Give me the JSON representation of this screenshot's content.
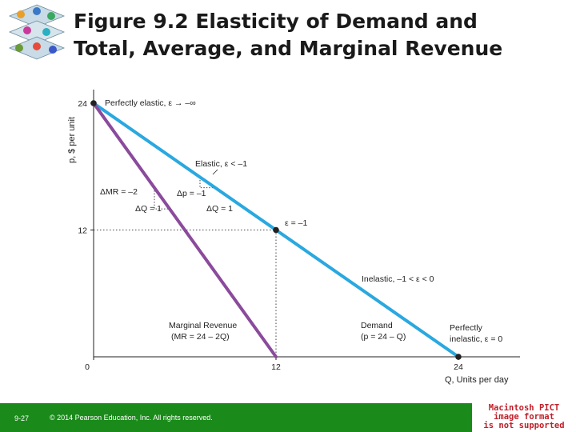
{
  "title_line1": "Figure 9.2 Elasticity of Demand and",
  "title_line2": "Total, Average, and Marginal Revenue",
  "footer": {
    "slide_number": "9-27",
    "copyright": "© 2014 Pearson Education, Inc. All rights reserved."
  },
  "pict_notice": [
    "Macintosh PICT",
    "image format",
    "is not supported"
  ],
  "colors": {
    "demand": "#2aa8e0",
    "marginal_revenue": "#8b4a9c",
    "footer_bg": "#1a8a1a",
    "pict_text": "#c0202a"
  },
  "chart_data": {
    "type": "line",
    "xlabel": "Q, Units per day",
    "ylabel": "p, $ per unit",
    "xlim": [
      0,
      24
    ],
    "ylim": [
      0,
      24
    ],
    "x_ticks": [
      "0",
      "12",
      "24"
    ],
    "y_ticks": [
      "12",
      "24"
    ],
    "series": [
      {
        "name": "Demand",
        "x": [
          0,
          24
        ],
        "y": [
          24,
          0
        ]
      },
      {
        "name": "Marginal Revenue",
        "x": [
          0,
          12
        ],
        "y": [
          24,
          0
        ]
      }
    ],
    "points": [
      {
        "x": 0,
        "y": 24
      },
      {
        "x": 12,
        "y": 12
      },
      {
        "x": 24,
        "y": 0
      }
    ],
    "annotations": {
      "perfectly_elastic": "Perfectly elastic, ε → –∞",
      "elastic": "Elastic, ε < –1",
      "unit_elastic": "ε = –1",
      "inelastic": "Inelastic, –1 < ε < 0",
      "perfectly_inelastic_1": "Perfectly",
      "perfectly_inelastic_2": "inelastic, ε = 0",
      "demand_1": "Demand",
      "demand_2": "(p = 24 – Q)",
      "mr_1": "Marginal Revenue",
      "mr_2": "(MR = 24 – 2Q)",
      "delta_mr": "ΔMR = –2",
      "delta_q_mr": "ΔQ = 1",
      "delta_p": "Δp = –1",
      "delta_q_d": "ΔQ = 1"
    }
  }
}
